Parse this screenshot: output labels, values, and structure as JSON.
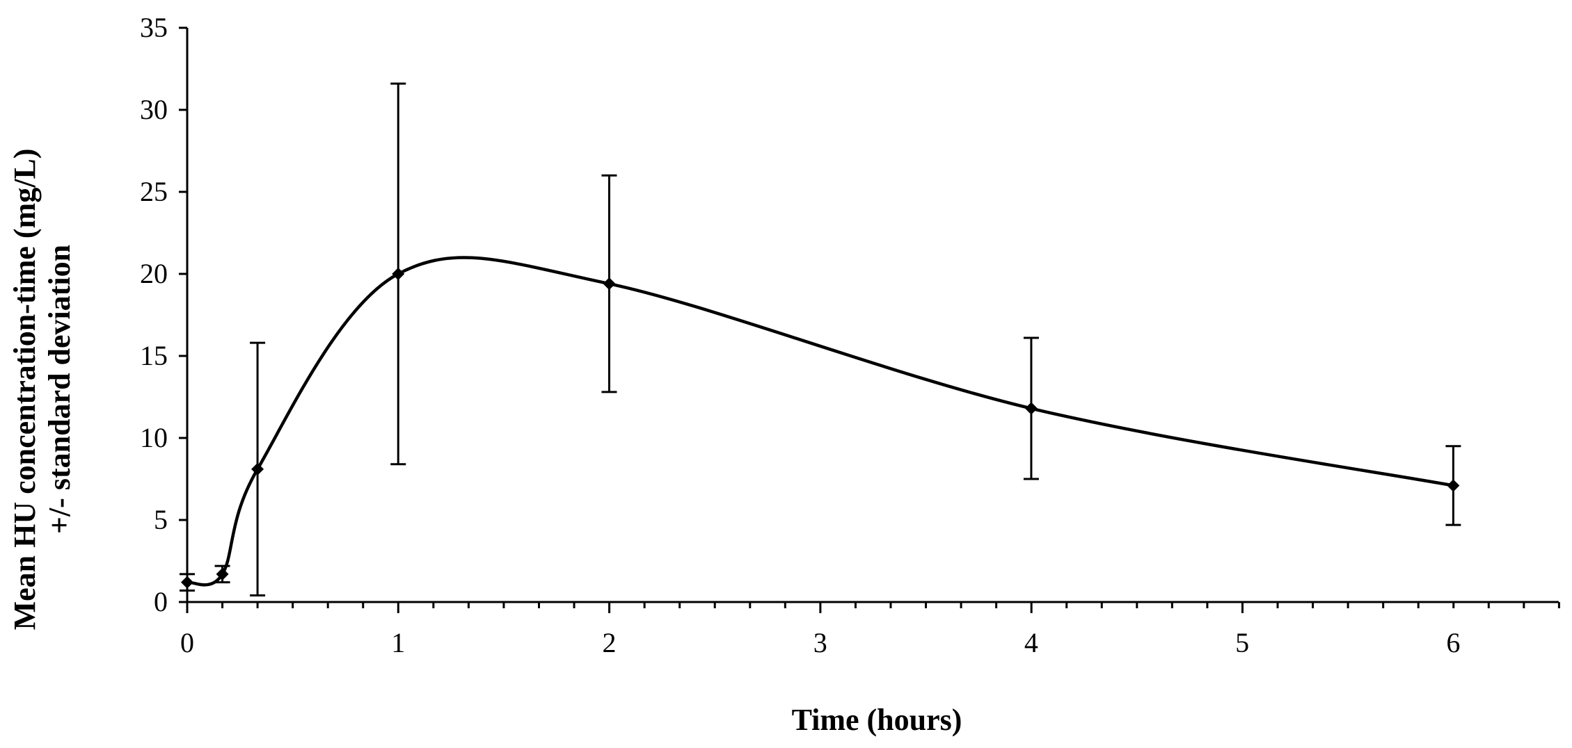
{
  "chart_data": {
    "type": "line",
    "title": "",
    "xlabel": "Time (hours)",
    "ylabel_line1": "Mean HU concentration-time (mg/L)",
    "ylabel_line2": "+/- standard deviation",
    "xlim": [
      0,
      6.5
    ],
    "ylim": [
      0,
      35
    ],
    "x_major_ticks": [
      0,
      1,
      2,
      3,
      4,
      5,
      6
    ],
    "x_minor_step": 0.1667,
    "y_ticks": [
      0,
      5,
      10,
      15,
      20,
      25,
      30,
      35
    ],
    "grid": false,
    "legend": "none",
    "series": [
      {
        "name": "Mean HU concentration",
        "x": [
          0,
          0.1667,
          0.3333,
          1,
          2,
          4,
          6
        ],
        "values": [
          1.2,
          1.7,
          8.1,
          20.0,
          19.4,
          11.8,
          7.1
        ],
        "sd": [
          0.5,
          0.5,
          7.7,
          11.6,
          6.6,
          4.3,
          2.4
        ]
      }
    ]
  }
}
